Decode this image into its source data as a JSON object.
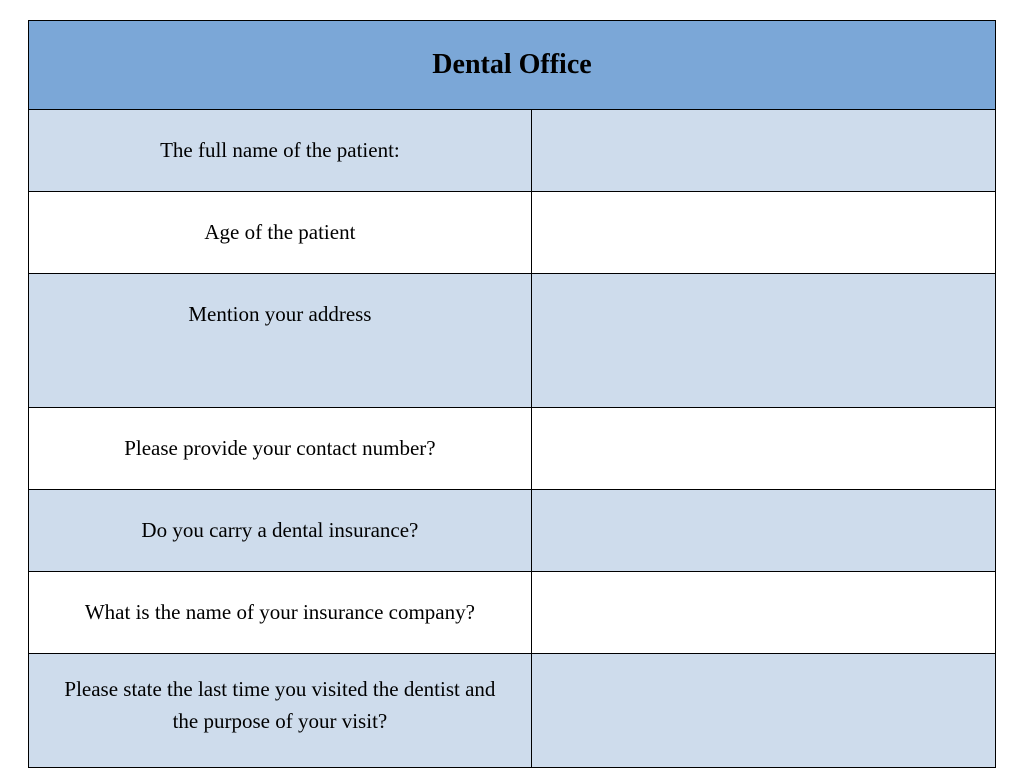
{
  "form": {
    "title": "Dental Office",
    "header_bg_color": "#7ba7d7",
    "alt_row_color": "#cedcec",
    "base_row_color": "#ffffff",
    "border_color": "#000000",
    "rows": [
      {
        "label": "The full name of the patient:",
        "value": ""
      },
      {
        "label": "Age of the patient",
        "value": ""
      },
      {
        "label": "Mention your address",
        "value": ""
      },
      {
        "label": "Please provide your contact number?",
        "value": ""
      },
      {
        "label": "Do you carry a dental insurance?",
        "value": ""
      },
      {
        "label": "What is the name of your insurance company?",
        "value": ""
      },
      {
        "label": "Please state the last time you visited the dentist and the purpose of your visit?",
        "value": ""
      }
    ]
  }
}
